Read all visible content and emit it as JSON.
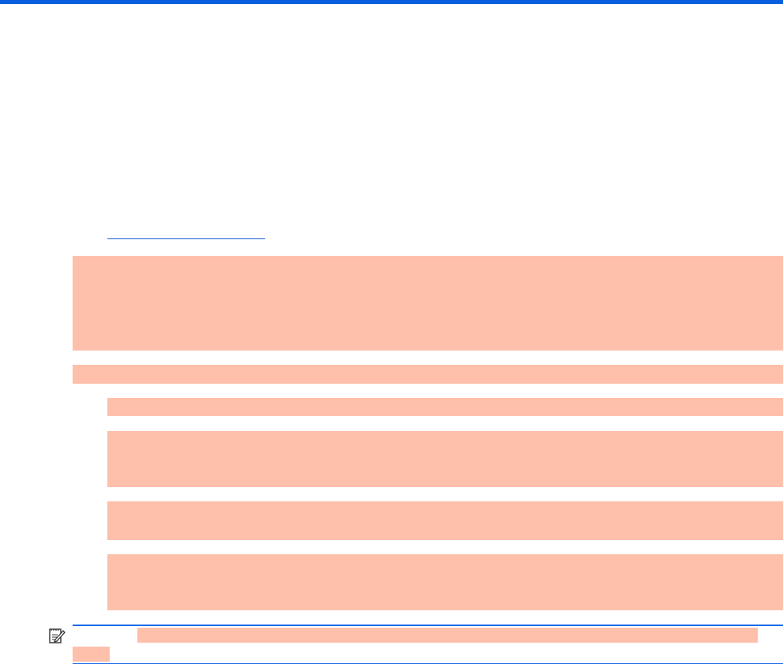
{
  "colors": {
    "accent": "#0a5fe0",
    "link": "#1a5fd8",
    "redaction": "#ffc0ab"
  },
  "note": {
    "icon": "note-pencil-icon"
  }
}
